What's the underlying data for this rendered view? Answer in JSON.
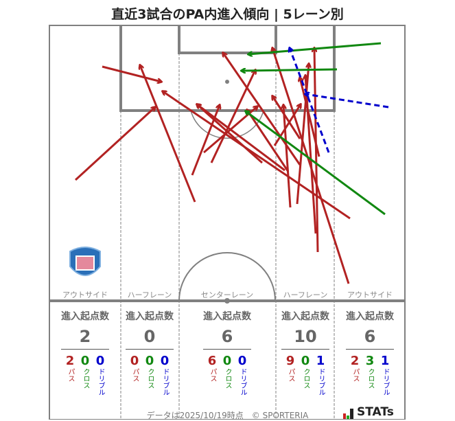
{
  "title": "直近3試合のPA内進入傾向 | 5レーン別",
  "colors": {
    "pass": "#b22222",
    "cross": "#118811",
    "dribble": "#0000cc",
    "line": "#808080"
  },
  "legend_labels": {
    "pass": "パス",
    "cross": "クロス",
    "dribble": "ドリブル"
  },
  "header_label": "進入起点数",
  "lanes": [
    {
      "name": "アウトサイド",
      "total": "2",
      "pass": "2",
      "cross": "0",
      "dribble": "0"
    },
    {
      "name": "ハーフレーン",
      "total": "0",
      "pass": "0",
      "cross": "0",
      "dribble": "0"
    },
    {
      "name": "センターレーン",
      "total": "6",
      "pass": "6",
      "cross": "0",
      "dribble": "0"
    },
    {
      "name": "ハーフレーン",
      "total": "10",
      "pass": "9",
      "cross": "0",
      "dribble": "1"
    },
    {
      "name": "アウトサイド",
      "total": "6",
      "pass": "2",
      "cross": "3",
      "dribble": "1"
    }
  ],
  "team_logo": "VFK",
  "footer": "データは2025/10/19時点　© SPORTERIA",
  "brand": "STATs"
}
